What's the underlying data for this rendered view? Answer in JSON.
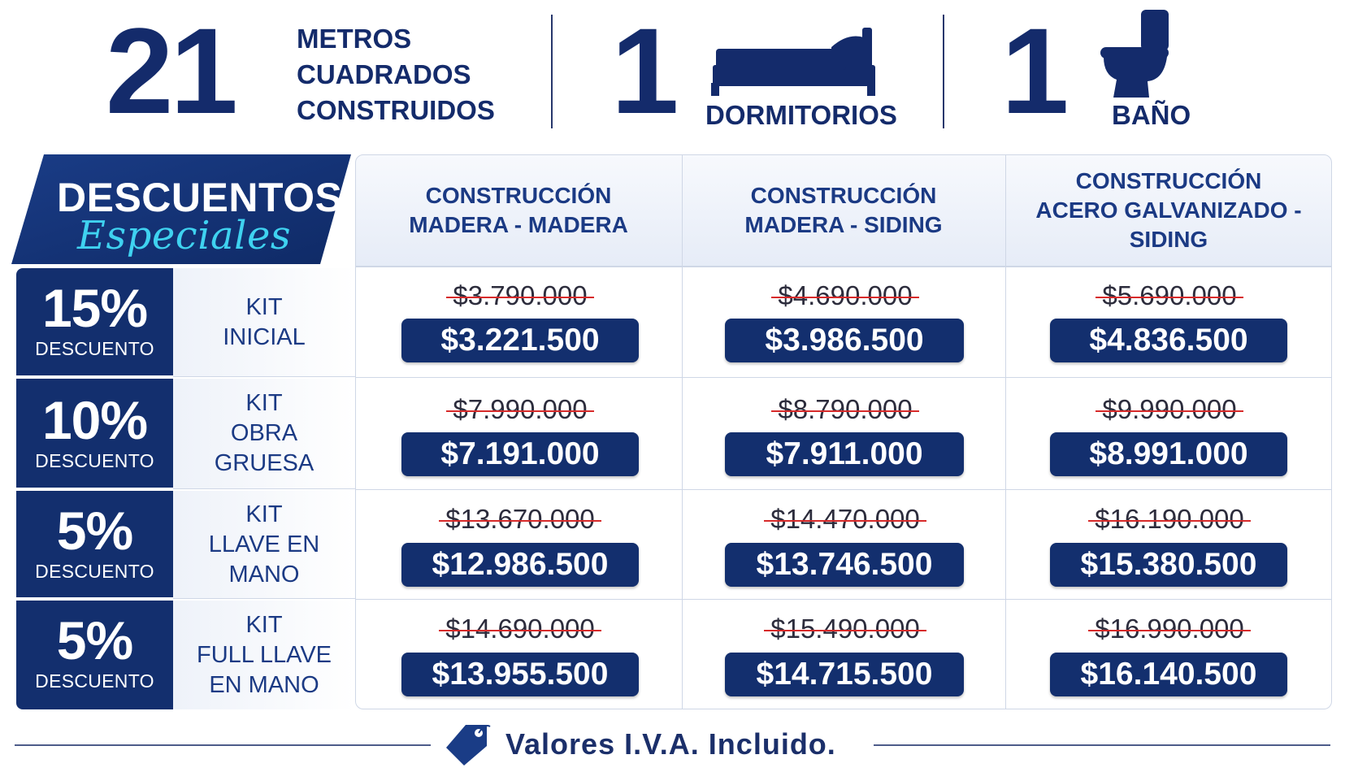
{
  "stats": {
    "area": {
      "number": "21",
      "label_lines": [
        "METROS",
        "CUADRADOS",
        "CONSTRUIDOS"
      ]
    },
    "bedrooms": {
      "number": "1",
      "label": "DORMITORIOS",
      "icon": "bed-icon"
    },
    "bathrooms": {
      "number": "1",
      "label": "BAÑO",
      "icon": "toilet-icon"
    }
  },
  "banner": {
    "title": "DESCUENTOS",
    "subtitle": "Especiales"
  },
  "columns": [
    "CONSTRUCCIÓN\nMADERA - MADERA",
    "CONSTRUCCIÓN\nMADERA - SIDING",
    "CONSTRUCCIÓN\nACERO GALVANIZADO -\nSIDING"
  ],
  "rows": [
    {
      "discount": "15%",
      "discount_label": "DESCUENTO",
      "kit": "KIT\nINICIAL",
      "prices": [
        {
          "old": "$3.790.000",
          "new": "$3.221.500"
        },
        {
          "old": "$4.690.000",
          "new": "$3.986.500"
        },
        {
          "old": "$5.690.000",
          "new": "$4.836.500"
        }
      ]
    },
    {
      "discount": "10%",
      "discount_label": "DESCUENTO",
      "kit": "KIT\nOBRA\nGRUESA",
      "prices": [
        {
          "old": "$7.990.000",
          "new": "$7.191.000"
        },
        {
          "old": "$8.790.000",
          "new": "$7.911.000"
        },
        {
          "old": "$9.990.000",
          "new": "$8.991.000"
        }
      ]
    },
    {
      "discount": "5%",
      "discount_label": "DESCUENTO",
      "kit": "KIT\nLLAVE EN\nMANO",
      "prices": [
        {
          "old": "$13.670.000",
          "new": "$12.986.500"
        },
        {
          "old": "$14.470.000",
          "new": "$13.746.500"
        },
        {
          "old": "$16.190.000",
          "new": "$15.380.500"
        }
      ]
    },
    {
      "discount": "5%",
      "discount_label": "DESCUENTO",
      "kit": "KIT\nFULL LLAVE\nEN MANO",
      "prices": [
        {
          "old": "$14.690.000",
          "new": "$13.955.500"
        },
        {
          "old": "$15.490.000",
          "new": "$14.715.500"
        },
        {
          "old": "$16.990.000",
          "new": "$16.140.500"
        }
      ]
    }
  ],
  "footer": {
    "text": "Valores I.V.A. Incluido.",
    "icon": "price-tag-icon"
  },
  "colors": {
    "navy": "#132f6e",
    "accent_cyan": "#3fd2f0",
    "strike_red": "#d72a2a"
  }
}
